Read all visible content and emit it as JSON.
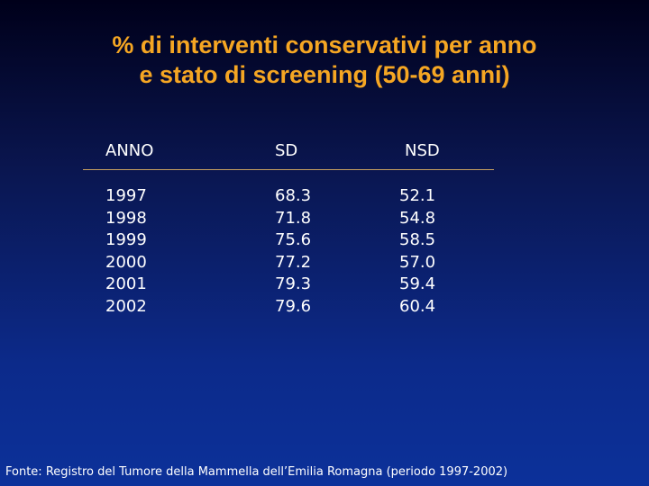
{
  "slide": {
    "title_line1": "% di interventi conservativi per anno",
    "title_line2": "e stato di screening  (50-69 anni)",
    "footer": "Fonte: Registro del Tumore della Mammella dell’Emilia Romagna (periodo 1997-2002)"
  },
  "table": {
    "headers": [
      "ANNO",
      "SD",
      "NSD"
    ],
    "rows": [
      [
        "1997",
        "68.3",
        "52.1"
      ],
      [
        "1998",
        "71.8",
        "54.8"
      ],
      [
        "1999",
        "75.6",
        "58.5"
      ],
      [
        "2000",
        "77.2",
        "57.0"
      ],
      [
        "2001",
        "79.3",
        "59.4"
      ],
      [
        "2002",
        "79.6",
        "60.4"
      ]
    ]
  },
  "colors": {
    "title": "#f5a623",
    "text": "#ffffff",
    "rule": "#c8a060",
    "background_top": "#00001a",
    "background_bottom": "#0c319a"
  }
}
